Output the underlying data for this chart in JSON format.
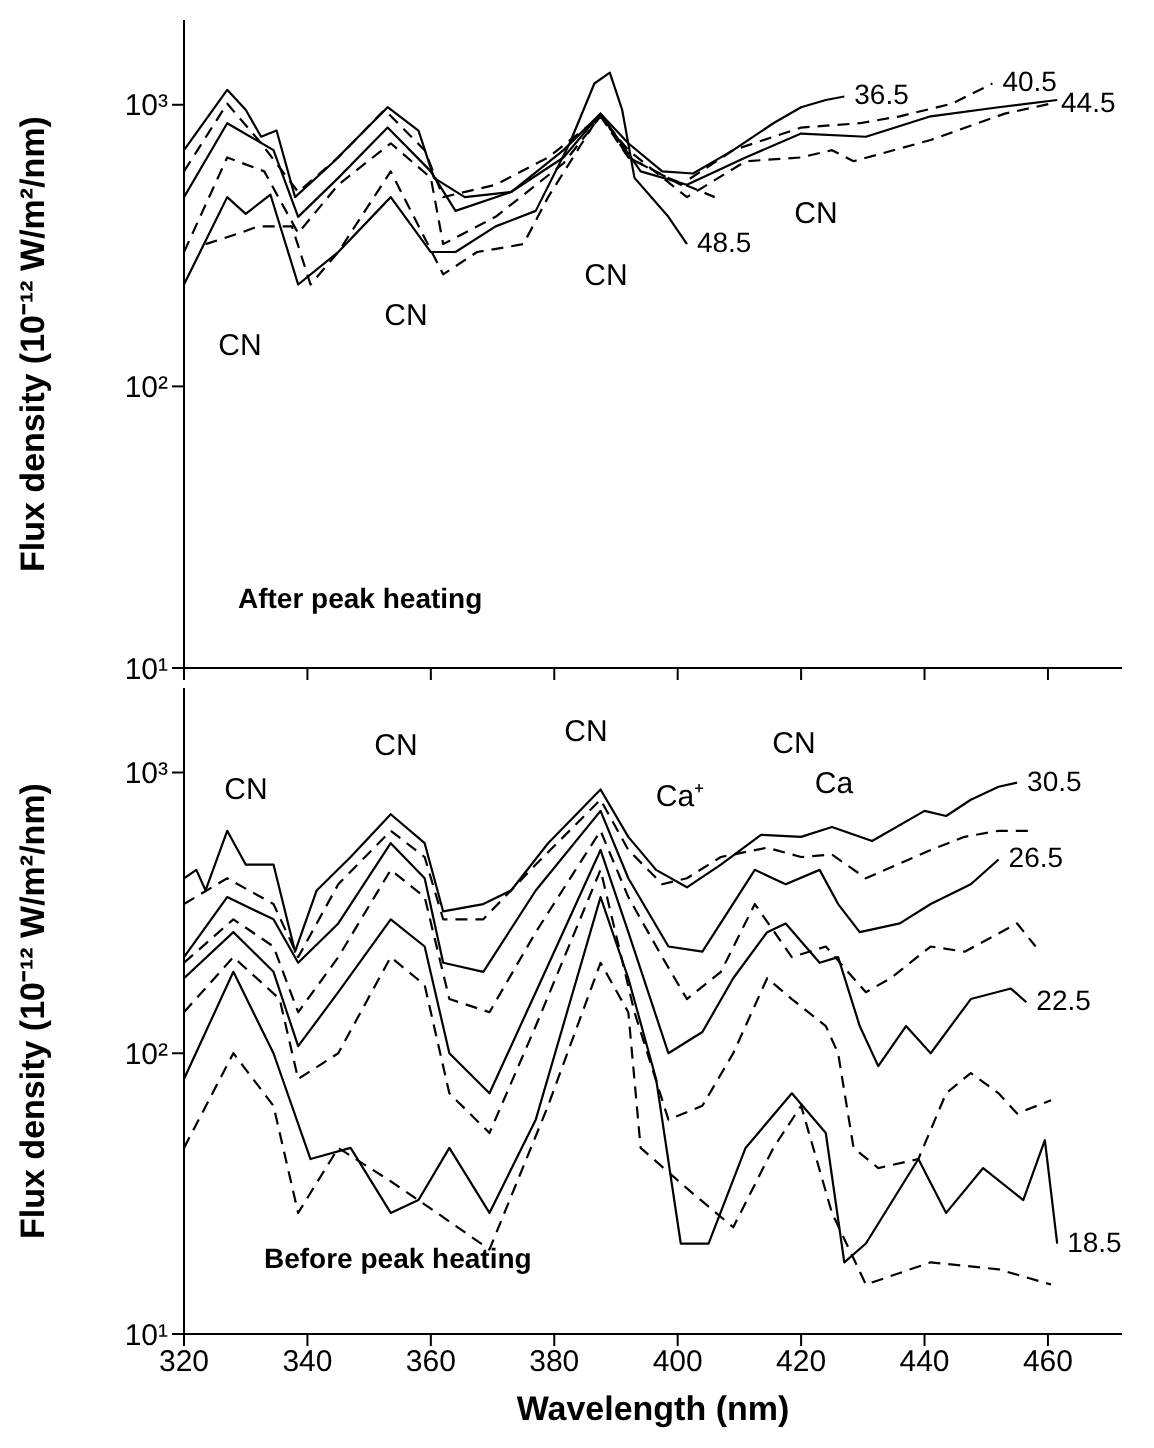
{
  "chart_data": [
    {
      "type": "line",
      "ylabel": "Flux density (10⁻¹² W/m²/nm)",
      "xlim": [
        320,
        472
      ],
      "xticks": [
        320,
        340,
        360,
        380,
        400,
        420,
        440,
        460
      ],
      "ylim": [
        10,
        2000
      ],
      "yticks": [
        {
          "value": 10,
          "label": "10¹"
        },
        {
          "value": 100,
          "label": "10²"
        },
        {
          "value": 1000,
          "label": "10³"
        }
      ],
      "log": "y",
      "tick_labels": "y",
      "annotations": [
        "CN",
        "CN",
        "CN",
        "CN",
        "After peak heating"
      ],
      "series": [
        {
          "name": "36.5",
          "color": "#000000",
          "line_style": "solid",
          "x": [
            320,
            327,
            330,
            332.5,
            335,
            338,
            344,
            353,
            358,
            360.5,
            365.5,
            373,
            381.5,
            387.5,
            392,
            397.5,
            402.5,
            409,
            415.5,
            420,
            424,
            427
          ],
          "values": [
            690,
            1130,
            960,
            770,
            810,
            470,
            620,
            980,
            810,
            550,
            470,
            490,
            650,
            930,
            730,
            580,
            570,
            690,
            860,
            980,
            1040,
            1070
          ]
        },
        {
          "name": "40.5",
          "color": "#000000",
          "line_style": "dashed",
          "x": [
            320,
            327,
            332.5,
            338.5,
            345,
            352.5,
            359,
            362,
            370.5,
            379,
            387.5,
            392,
            400.5,
            409,
            420,
            429.5,
            436,
            444.5,
            451
          ],
          "values": [
            580,
            1010,
            730,
            490,
            650,
            960,
            690,
            470,
            520,
            650,
            910,
            650,
            520,
            690,
            830,
            860,
            910,
            1010,
            1190
          ]
        },
        {
          "color": "#000000",
          "line_style": "solid",
          "x": [
            320,
            327,
            334.5,
            338.5,
            345,
            353,
            360,
            364,
            373,
            381.5,
            387.5,
            394,
            401.5,
            411,
            420,
            430.5,
            441,
            452,
            461.5
          ],
          "values": [
            470,
            860,
            690,
            400,
            550,
            830,
            580,
            420,
            490,
            690,
            930,
            580,
            520,
            650,
            790,
            770,
            910,
            980,
            1040
          ]
        },
        {
          "name": "44.5",
          "color": "#000000",
          "line_style": "dashed",
          "x": [
            320,
            327,
            333,
            338.5,
            345,
            353.5,
            360,
            362,
            370.5,
            381.5,
            387.5,
            392,
            401.5,
            411,
            420,
            425,
            428.5,
            441,
            453,
            460.5
          ],
          "values": [
            300,
            650,
            580,
            350,
            520,
            730,
            550,
            320,
            400,
            620,
            910,
            690,
            470,
            630,
            650,
            690,
            630,
            750,
            930,
            1010
          ]
        },
        {
          "name": "48.5",
          "color": "#000000",
          "line_style": "solid",
          "x": [
            320,
            327,
            330,
            334,
            338.5,
            345,
            353.5,
            360,
            364,
            370.5,
            377,
            382.5,
            386.5,
            389,
            391,
            393,
            398.5,
            401.5
          ],
          "values": [
            230,
            470,
            410,
            480,
            230,
            300,
            470,
            300,
            300,
            370,
            420,
            730,
            1190,
            1300,
            960,
            550,
            400,
            320
          ]
        },
        {
          "color": "#000000",
          "line_style": "dashed",
          "x": [
            323.5,
            329,
            332,
            337.5,
            340.5,
            345,
            353.5,
            362,
            367.5,
            375,
            379,
            387.5,
            392,
            398.5,
            406
          ],
          "values": [
            320,
            350,
            370,
            370,
            230,
            300,
            580,
            250,
            300,
            320,
            470,
            930,
            650,
            550,
            470
          ]
        }
      ]
    },
    {
      "type": "line",
      "ylabel": "Flux density (10⁻¹² W/m²/nm)",
      "xlabel": "Wavelength (nm)",
      "xlim": [
        320,
        472
      ],
      "xticks": [
        320,
        340,
        360,
        380,
        400,
        420,
        440,
        460
      ],
      "ylim": [
        10,
        2000
      ],
      "yticks": [
        {
          "value": 10,
          "label": "10¹"
        },
        {
          "value": 100,
          "label": "10²"
        },
        {
          "value": 1000,
          "label": "10³"
        }
      ],
      "log": "y",
      "annotations": [
        "CN",
        "CN",
        "CN",
        "CN",
        "Ca⁺",
        "Ca",
        "Before peak heating"
      ],
      "series": [
        {
          "name": "30.5",
          "color": "#000000",
          "line_style": "solid",
          "x": [
            320,
            322,
            323.5,
            327,
            330,
            334.5,
            338,
            341.5,
            347,
            353.5,
            359,
            362,
            368.5,
            373,
            379,
            387.5,
            392,
            396.5,
            401.5,
            407,
            413.5,
            420,
            425,
            431.5,
            440,
            443.5,
            447.5,
            452,
            455
          ],
          "values": [
            420,
            450,
            380,
            620,
            470,
            470,
            230,
            380,
            500,
            710,
            560,
            320,
            340,
            380,
            560,
            870,
            590,
            450,
            390,
            470,
            600,
            590,
            640,
            570,
            730,
            700,
            800,
            890,
            920
          ]
        },
        {
          "color": "#000000",
          "line_style": "dashed",
          "x": [
            320,
            327,
            334.5,
            338.5,
            345,
            353.5,
            359,
            362,
            368.5,
            377,
            387.5,
            392,
            397.5,
            401.5,
            407,
            414.5,
            420,
            425,
            430.5,
            441,
            446.5,
            452,
            457
          ],
          "values": [
            340,
            420,
            340,
            220,
            400,
            620,
            500,
            300,
            300,
            470,
            800,
            530,
            400,
            420,
            500,
            540,
            500,
            510,
            420,
            530,
            590,
            620,
            620
          ]
        },
        {
          "name": "26.5",
          "color": "#000000",
          "line_style": "solid",
          "x": [
            320,
            327,
            334.5,
            338.5,
            345,
            353.5,
            359,
            362,
            368.5,
            377,
            387.5,
            392,
            398.5,
            404,
            412.5,
            417.5,
            423,
            426,
            429.5,
            436,
            441,
            447.5,
            452
          ],
          "values": [
            220,
            360,
            300,
            210,
            290,
            560,
            420,
            210,
            195,
            380,
            730,
            420,
            240,
            230,
            450,
            400,
            450,
            340,
            270,
            290,
            340,
            400,
            490
          ]
        },
        {
          "color": "#000000",
          "line_style": "dashed",
          "x": [
            320,
            328,
            334.5,
            338.5,
            345,
            353.5,
            359,
            363,
            369.5,
            377,
            387.5,
            392,
            397.5,
            401.5,
            407,
            412.5,
            418.5,
            424,
            428.5,
            430.5,
            434.5,
            441,
            446.5,
            451,
            455,
            458
          ],
          "values": [
            210,
            300,
            240,
            140,
            220,
            450,
            360,
            156,
            140,
            270,
            620,
            360,
            220,
            156,
            195,
            340,
            220,
            240,
            185,
            165,
            185,
            240,
            230,
            260,
            290,
            240
          ]
        },
        {
          "name": "22.5",
          "color": "#000000",
          "line_style": "solid",
          "x": [
            320,
            328,
            334.5,
            338.5,
            345,
            353.5,
            359,
            363,
            369.5,
            377,
            387.5,
            392,
            398.5,
            404,
            409,
            414.5,
            417.5,
            423,
            426,
            429.5,
            432.5,
            437,
            441,
            447.5,
            454,
            456.5
          ],
          "values": [
            185,
            270,
            195,
            106,
            165,
            300,
            240,
            100,
            72,
            165,
            530,
            270,
            100,
            119,
            185,
            270,
            290,
            210,
            220,
            125,
            90,
            125,
            100,
            156,
            170,
            152
          ]
        },
        {
          "color": "#000000",
          "line_style": "dashed",
          "x": [
            320,
            328,
            335.5,
            338.5,
            345,
            353.5,
            359,
            363,
            369.5,
            377,
            387.5,
            393,
            398.5,
            404,
            409,
            414.5,
            418.5,
            424,
            426,
            428.5,
            432.5,
            439,
            443.5,
            447.5,
            452,
            455,
            460.5
          ],
          "values": [
            140,
            220,
            156,
            81,
            100,
            220,
            175,
            72,
            52,
            125,
            450,
            140,
            58,
            65,
            100,
            185,
            156,
            125,
            100,
            46,
            39,
            42,
            72,
            85,
            72,
            61,
            68
          ]
        },
        {
          "name": "18.5",
          "color": "#000000",
          "line_style": "solid",
          "x": [
            320,
            328,
            334.5,
            340.5,
            347,
            353.5,
            358,
            363,
            369.5,
            377,
            387.5,
            392,
            396.5,
            400.5,
            405,
            411,
            418.5,
            424,
            427,
            430.5,
            439,
            443.5,
            449.5,
            456,
            459.5,
            461.5
          ],
          "values": [
            81,
            195,
            100,
            42,
            46,
            27,
            30,
            46,
            27,
            58,
            360,
            185,
            81,
            21,
            21,
            46,
            72,
            52,
            18,
            21,
            42,
            27,
            39,
            30,
            49,
            21
          ]
        },
        {
          "color": "#000000",
          "line_style": "dashed",
          "x": [
            320,
            328,
            334.5,
            338.5,
            345,
            353.5,
            361,
            369.5,
            379,
            387.5,
            392,
            394,
            401.5,
            409,
            415.5,
            420,
            425,
            430.5,
            441,
            452,
            460.5
          ],
          "values": [
            46,
            100,
            65,
            27,
            46,
            35,
            27,
            20,
            65,
            210,
            140,
            46,
            33,
            24,
            46,
            65,
            27,
            15,
            18,
            17,
            15
          ]
        }
      ]
    }
  ]
}
